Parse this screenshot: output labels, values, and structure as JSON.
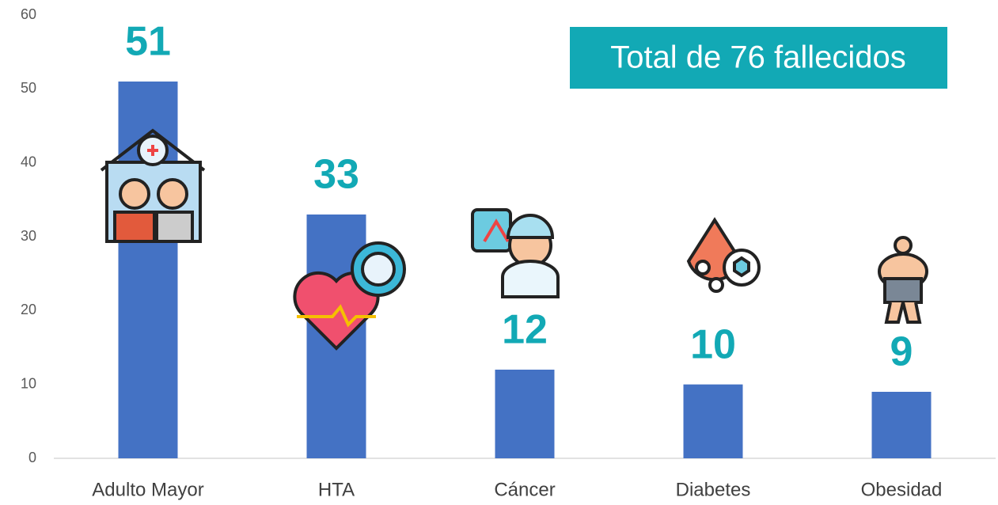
{
  "chart_data": {
    "type": "bar",
    "annotation": "Total de 76 fallecidos",
    "categories": [
      "Adulto Mayor",
      "HTA",
      "Cáncer",
      "Diabetes",
      "Obesidad"
    ],
    "values": [
      51,
      33,
      12,
      10,
      9
    ],
    "color": "#4472c4",
    "label_color": "#12a9b5",
    "ylim": [
      0,
      60
    ],
    "yticks": [
      0,
      10,
      20,
      30,
      40,
      50,
      60
    ],
    "grid": false
  }
}
